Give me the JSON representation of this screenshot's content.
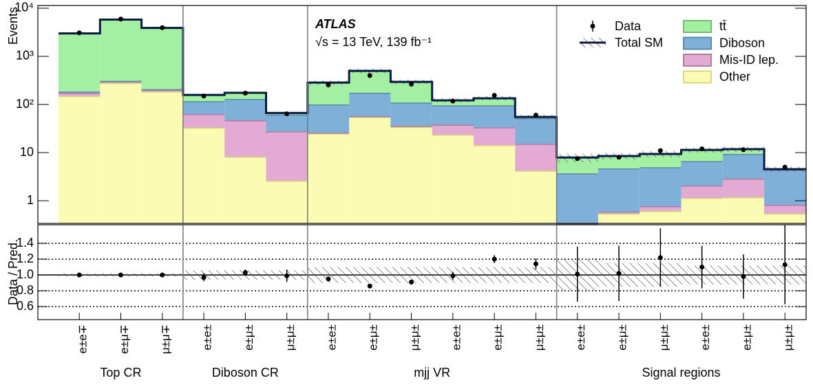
{
  "chart_data": {
    "type": "stacked-histogram-ratio",
    "annotations": {
      "experiment": "ATLAS",
      "energy": "√s = 13 TeV, 139 fb⁻¹"
    },
    "ylabel": "Events",
    "ratio_ylabel": "Data / Pred.",
    "log_scale": true,
    "ylim": [
      0.338,
      11400
    ],
    "yticks": [
      {
        "value": 10000,
        "label": "10⁴"
      },
      {
        "value": 1000,
        "label": "10³"
      },
      {
        "value": 100,
        "label": "10²"
      },
      10,
      1
    ],
    "ratio_ylim": [
      0.435,
      1.635
    ],
    "ratio_yticks": [
      0.6,
      0.8,
      {
        "value": 1,
        "label": "1.0"
      },
      1.2,
      1.4
    ],
    "categories": [
      {
        "label": "e±e∓",
        "region": "Top CR"
      },
      {
        "label": "e±μ∓",
        "region": "Top CR"
      },
      {
        "label": "μ±μ∓",
        "region": "Top CR"
      },
      {
        "label": "e±e±",
        "region": "Diboson CR"
      },
      {
        "label": "e±μ±",
        "region": "Diboson CR"
      },
      {
        "label": "μ±μ±",
        "region": "Diboson CR"
      },
      {
        "label": "e±e±",
        "region": "mjj VR"
      },
      {
        "label": "e±μ±",
        "region": "mjj VR"
      },
      {
        "label": "μ±μ±",
        "region": "mjj VR"
      },
      {
        "label": "e±e±",
        "region": "mjj VR"
      },
      {
        "label": "e±μ±",
        "region": "mjj VR"
      },
      {
        "label": "μ±μ±",
        "region": "mjj VR"
      },
      {
        "label": "e±e±",
        "region": "Signal regions"
      },
      {
        "label": "e±μ±",
        "region": "Signal regions"
      },
      {
        "label": "μ±μ±",
        "region": "Signal regions"
      },
      {
        "label": "e±e±",
        "region": "Signal regions"
      },
      {
        "label": "e±μ±",
        "region": "Signal regions"
      },
      {
        "label": "μ±μ±",
        "region": "Signal regions"
      }
    ],
    "series": [
      {
        "name": "Other",
        "color": "#fbfbb4",
        "edge": "#d9d97a",
        "values": [
          150,
          280,
          185,
          33,
          8.2,
          2.6,
          25,
          55,
          34,
          23.5,
          14.3,
          4.2,
          0.2,
          0.54,
          0.61,
          1.14,
          1.18,
          0.54
        ]
      },
      {
        "name": "Mis-ID lep.",
        "color": "#e3aad4",
        "edge": "#b27c9f",
        "values": [
          25,
          20,
          15,
          30,
          39,
          25,
          1,
          2,
          2,
          14.5,
          19,
          11,
          0.1,
          0.05,
          0.16,
          0.92,
          1.7,
          0.28
        ]
      },
      {
        "name": "Diboson",
        "color": "#7eb0d8",
        "edge": "#5b89ab",
        "values": [
          10,
          10,
          8,
          54,
          83,
          34,
          74,
          118,
          74,
          58,
          63,
          37,
          3.4,
          4.1,
          4.2,
          4.6,
          6.5,
          3.6
        ]
      },
      {
        "name": "tt̄",
        "color": "#a3f0a3",
        "edge": "#6fbf6f",
        "values": [
          2815,
          5490,
          3692,
          41,
          45,
          5,
          185,
          325,
          185,
          26,
          38,
          3,
          4.2,
          3.8,
          4.4,
          4.7,
          2.4,
          0.1
        ]
      }
    ],
    "data": {
      "name": "Data",
      "values": [
        3080,
        5950,
        3950,
        150,
        172,
        64,
        255,
        400,
        265,
        118,
        155,
        60,
        7.5,
        8,
        11,
        12,
        11.5,
        5
      ]
    },
    "total": {
      "name": "Total SM",
      "color": "#0b1a45",
      "band": [
        0.02,
        0.02,
        0.02,
        0.06,
        0.06,
        0.06,
        0.1,
        0.1,
        0.1,
        0.1,
        0.1,
        0.1,
        0.2,
        0.15,
        0.15,
        0.12,
        0.12,
        0.12
      ]
    },
    "ratio": {
      "values": [
        1.0,
        1.0,
        1.0,
        0.97,
        1.03,
        0.99,
        0.95,
        0.86,
        0.91,
        0.99,
        1.2,
        1.14,
        1.01,
        1.02,
        1.22,
        1.1,
        0.98,
        1.13
      ],
      "errors": [
        0.01,
        0.01,
        0.01,
        0.05,
        0.04,
        0.08,
        0.03,
        0.02,
        0.03,
        0.05,
        0.05,
        0.07,
        0.35,
        0.35,
        0.37,
        0.27,
        0.28,
        0.5
      ]
    }
  }
}
